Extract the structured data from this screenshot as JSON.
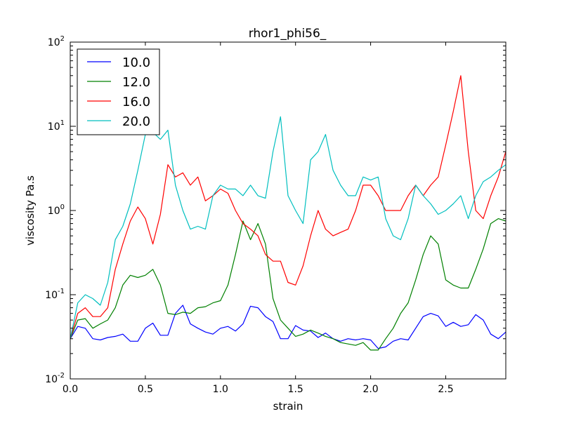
{
  "chart_data": {
    "type": "line",
    "title": "rhor1_phi56_",
    "xlabel": "strain",
    "ylabel": "viscosity Pa.s",
    "xlim": [
      0,
      2.9
    ],
    "ylim": [
      0.01,
      100
    ],
    "yscale": "log",
    "grid": false,
    "legend": "top-left",
    "x_ticks": [
      {
        "v": 0.0,
        "label": "0.0"
      },
      {
        "v": 0.5,
        "label": "0.5"
      },
      {
        "v": 1.0,
        "label": "1.0"
      },
      {
        "v": 1.5,
        "label": "1.5"
      },
      {
        "v": 2.0,
        "label": "2.0"
      },
      {
        "v": 2.5,
        "label": "2.5"
      }
    ],
    "y_ticks": [
      {
        "v": 0.01,
        "base": "10",
        "exp": "-2"
      },
      {
        "v": 0.1,
        "base": "10",
        "exp": "-1"
      },
      {
        "v": 1,
        "base": "10",
        "exp": "0"
      },
      {
        "v": 10,
        "base": "10",
        "exp": "1"
      },
      {
        "v": 100,
        "base": "10",
        "exp": "2"
      }
    ],
    "x": [
      0.0,
      0.05,
      0.1,
      0.15,
      0.2,
      0.25,
      0.3,
      0.35,
      0.4,
      0.45,
      0.5,
      0.55,
      0.6,
      0.65,
      0.7,
      0.75,
      0.8,
      0.85,
      0.9,
      0.95,
      1.0,
      1.05,
      1.1,
      1.15,
      1.2,
      1.25,
      1.3,
      1.35,
      1.4,
      1.45,
      1.5,
      1.55,
      1.6,
      1.65,
      1.7,
      1.75,
      1.8,
      1.85,
      1.9,
      1.95,
      2.0,
      2.05,
      2.1,
      2.15,
      2.2,
      2.25,
      2.3,
      2.35,
      2.4,
      2.45,
      2.5,
      2.55,
      2.6,
      2.65,
      2.7,
      2.75,
      2.8,
      2.85,
      2.9
    ],
    "series": [
      {
        "name": "10.0",
        "color": "#0000ff",
        "values": [
          0.03,
          0.042,
          0.04,
          0.03,
          0.029,
          0.031,
          0.032,
          0.034,
          0.028,
          0.028,
          0.04,
          0.046,
          0.033,
          0.033,
          0.06,
          0.075,
          0.045,
          0.04,
          0.036,
          0.034,
          0.04,
          0.042,
          0.037,
          0.045,
          0.073,
          0.07,
          0.055,
          0.048,
          0.03,
          0.03,
          0.043,
          0.038,
          0.037,
          0.031,
          0.035,
          0.03,
          0.028,
          0.03,
          0.029,
          0.03,
          0.029,
          0.023,
          0.024,
          0.028,
          0.03,
          0.029,
          0.04,
          0.055,
          0.06,
          0.056,
          0.042,
          0.047,
          0.042,
          0.044,
          0.058,
          0.05,
          0.034,
          0.03,
          0.036
        ]
      },
      {
        "name": "12.0",
        "color": "#008000",
        "values": [
          0.03,
          0.05,
          0.052,
          0.04,
          0.045,
          0.05,
          0.07,
          0.13,
          0.17,
          0.16,
          0.17,
          0.2,
          0.13,
          0.06,
          0.058,
          0.062,
          0.06,
          0.07,
          0.072,
          0.08,
          0.085,
          0.13,
          0.3,
          0.75,
          0.45,
          0.7,
          0.4,
          0.09,
          0.05,
          0.04,
          0.032,
          0.034,
          0.038,
          0.035,
          0.032,
          0.03,
          0.027,
          0.026,
          0.025,
          0.027,
          0.022,
          0.022,
          0.03,
          0.04,
          0.06,
          0.08,
          0.15,
          0.3,
          0.5,
          0.4,
          0.15,
          0.13,
          0.12,
          0.12,
          0.2,
          0.35,
          0.7,
          0.8,
          0.75
        ]
      },
      {
        "name": "16.0",
        "color": "#ff0000",
        "values": [
          0.03,
          0.06,
          0.07,
          0.055,
          0.055,
          0.07,
          0.2,
          0.4,
          0.75,
          1.1,
          0.8,
          0.4,
          0.9,
          3.5,
          2.5,
          2.8,
          2.0,
          2.5,
          1.3,
          1.5,
          1.8,
          1.6,
          1.0,
          0.7,
          0.6,
          0.5,
          0.3,
          0.25,
          0.25,
          0.14,
          0.13,
          0.22,
          0.5,
          1.0,
          0.6,
          0.5,
          0.55,
          0.6,
          1.0,
          2.0,
          2.0,
          1.5,
          1.0,
          1.0,
          1.0,
          1.5,
          2.0,
          1.5,
          2.0,
          2.5,
          6.0,
          15.0,
          40.0,
          5.0,
          1.0,
          0.8,
          1.5,
          2.5,
          5.0
        ]
      },
      {
        "name": "20.0",
        "color": "#00bfbf",
        "values": [
          0.03,
          0.08,
          0.1,
          0.09,
          0.075,
          0.14,
          0.45,
          0.65,
          1.2,
          3.0,
          8.0,
          8.5,
          7.0,
          9.0,
          2.0,
          1.0,
          0.6,
          0.65,
          0.6,
          1.5,
          2.0,
          1.8,
          1.8,
          1.5,
          2.0,
          1.5,
          1.4,
          5.0,
          13.0,
          1.5,
          1.0,
          0.7,
          4.0,
          5.0,
          8.0,
          3.0,
          2.0,
          1.5,
          1.5,
          2.5,
          2.3,
          2.5,
          0.8,
          0.5,
          0.45,
          0.8,
          2.0,
          1.5,
          1.2,
          0.9,
          1.0,
          1.2,
          1.5,
          0.8,
          1.5,
          2.2,
          2.5,
          3.0,
          3.5
        ]
      }
    ]
  }
}
